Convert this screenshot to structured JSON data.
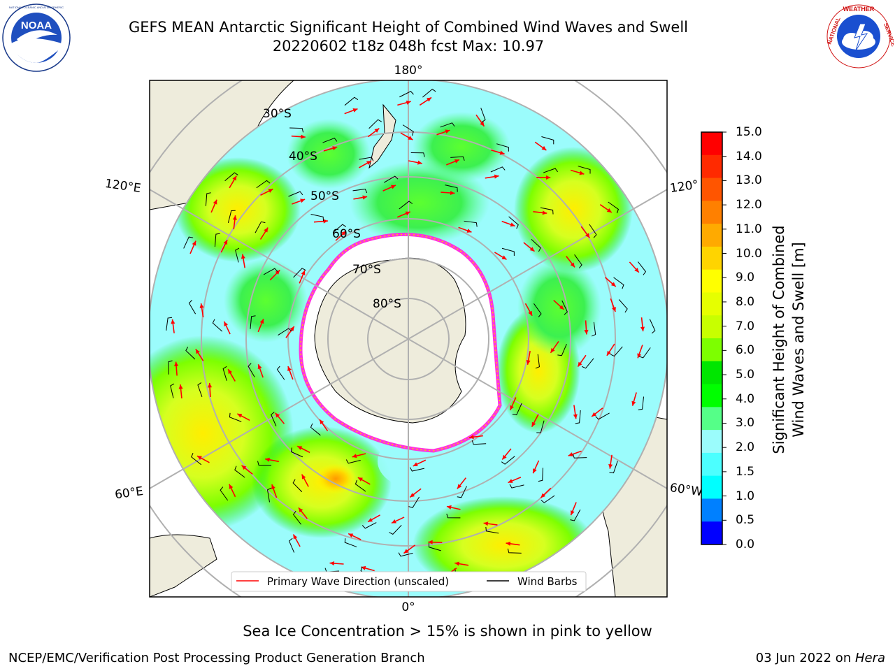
{
  "header": {
    "title_line1": "GEFS MEAN Antarctic Significant Height of Combined Wind Waves and Swell",
    "title_line2": "20220602 t18z 048h fcst   Max: 10.97"
  },
  "logos": {
    "left": {
      "name": "NOAA",
      "text": "NOAA",
      "ring_text": "NATIONAL OCEANIC AND ATMOSPHERIC ADMINISTRATION · U.S. DEPARTMENT OF COMMERCE"
    },
    "right": {
      "name": "National Weather Service",
      "ring_text": "NATIONAL WEATHER SERVICE"
    }
  },
  "map": {
    "projection": "south-polar-stereographic",
    "longitude_labels": {
      "top": "180°",
      "bottom": "0°",
      "left_upper": "120°E",
      "left_lower": "60°E",
      "right_upper": "120°",
      "right_lower": "60°W"
    },
    "latitude_labels": [
      "30°S",
      "40°S",
      "50°S",
      "60°S",
      "70°S",
      "80°S"
    ],
    "legend": {
      "primary_wave": "Primary Wave Direction (unscaled)",
      "wind_barbs": "Wind Barbs"
    },
    "colors": {
      "land": "#eeecdc",
      "ocean_low": "#9bfcfc",
      "wave_dir": "#ff0000",
      "barb": "#000000",
      "ice_edge": "#ff33dd"
    }
  },
  "colorbar": {
    "label_line1": "Significant Height of Combined",
    "label_line2": "Wind Waves and Swell [m]",
    "ticks": [
      "15.0",
      "14.0",
      "13.0",
      "12.0",
      "11.0",
      "10.0",
      "9.0",
      "8.0",
      "7.0",
      "6.0",
      "5.0",
      "4.0",
      "3.0",
      "2.0",
      "1.5",
      "1.0",
      "0.5",
      "0.0"
    ],
    "bin_colors": [
      "#ff0000",
      "#ff2a00",
      "#ff5500",
      "#ff8000",
      "#ffaa00",
      "#ffd400",
      "#ffff00",
      "#e6ff00",
      "#c8ff00",
      "#7dff00",
      "#00e600",
      "#00ff00",
      "#55ff88",
      "#9bfcfc",
      "#4cffff",
      "#00ffff",
      "#0080ff",
      "#0000ff"
    ]
  },
  "footer": {
    "note": "Sea Ice Concentration > 15% is shown in pink to yellow",
    "left": "NCEP/EMC/Verification Post Processing Product Generation Branch",
    "right_prefix": "03 Jun 2022 on ",
    "right_host": "Hera"
  }
}
